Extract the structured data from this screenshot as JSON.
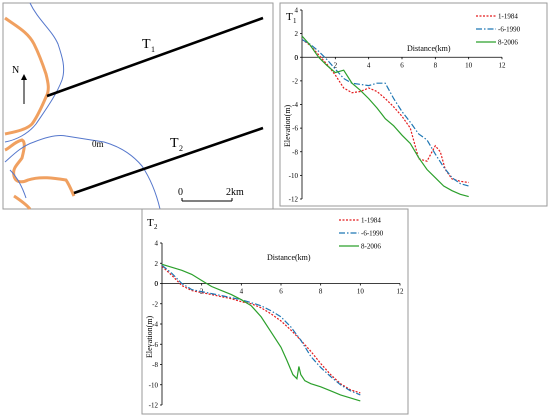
{
  "map": {
    "transect1_label": "T",
    "transect1_sub": "1",
    "transect2_label": "T",
    "transect2_sub": "2",
    "north_label": "N",
    "contour_label": "0m",
    "scale_start": "0",
    "scale_end": "2km",
    "colors": {
      "shore": "#f0a060",
      "contour": "#5577cc",
      "transect": "#000000"
    }
  },
  "chart_data": [
    {
      "type": "line",
      "panel_label": "T",
      "panel_sub": "1",
      "xlabel": "Distance(km)",
      "ylabel": "Elevation(m)",
      "xlim": [
        0,
        12
      ],
      "ylim": [
        -12,
        4
      ],
      "x_ticks": [
        2,
        4,
        6,
        8,
        10,
        12
      ],
      "y_ticks": [
        4,
        2,
        0,
        -2,
        -4,
        -6,
        -8,
        -10,
        -12
      ],
      "series": [
        {
          "name": "1-1984",
          "color": "#e41a1c",
          "dash": "2,1.5",
          "x": [
            0,
            0.5,
            1.0,
            1.5,
            2.0,
            2.5,
            3.0,
            3.5,
            4.0,
            4.5,
            5.0,
            5.5,
            6.0,
            6.5,
            7.0,
            7.5,
            7.8,
            8.0,
            8.3,
            8.6,
            9.0,
            9.5,
            10.0
          ],
          "y": [
            1.5,
            1.0,
            0.2,
            -0.6,
            -1.5,
            -2.6,
            -3.0,
            -2.9,
            -2.6,
            -2.9,
            -3.5,
            -4.2,
            -5.0,
            -6.0,
            -8.6,
            -8.8,
            -8.0,
            -7.5,
            -8.0,
            -9.5,
            -10.3,
            -10.5,
            -10.6
          ]
        },
        {
          "name": "-6-1990",
          "color": "#1f77b4",
          "dash": "6,2,1.5,2",
          "x": [
            0,
            0.5,
            1.0,
            1.5,
            2.0,
            2.5,
            3.0,
            3.5,
            4.0,
            4.5,
            5.0,
            5.5,
            6.0,
            6.5,
            7.0,
            7.5,
            8.0,
            8.5,
            9.0,
            9.5,
            10.0
          ],
          "y": [
            1.5,
            1.1,
            0.5,
            -0.2,
            -1.0,
            -1.8,
            -2.2,
            -2.3,
            -2.4,
            -2.2,
            -2.2,
            -3.5,
            -4.6,
            -5.5,
            -6.5,
            -7.0,
            -8.2,
            -9.3,
            -10.2,
            -10.7,
            -10.9
          ]
        },
        {
          "name": "8-2006",
          "color": "#2ca02c",
          "dash": "",
          "x": [
            0,
            0.5,
            1.0,
            1.5,
            2.0,
            2.5,
            3.0,
            3.5,
            4.0,
            4.5,
            5.0,
            5.5,
            6.0,
            6.5,
            7.0,
            7.5,
            8.0,
            8.5,
            9.0,
            9.5,
            10.0
          ],
          "y": [
            1.8,
            1.0,
            0.0,
            -0.7,
            -1.3,
            -1.1,
            -2.2,
            -2.8,
            -3.5,
            -4.3,
            -5.2,
            -5.8,
            -6.6,
            -7.3,
            -8.5,
            -9.5,
            -10.2,
            -10.9,
            -11.3,
            -11.6,
            -11.8
          ]
        }
      ]
    },
    {
      "type": "line",
      "panel_label": "T",
      "panel_sub": "2",
      "xlabel": "Distance(km)",
      "ylabel": "Elevation(m)",
      "xlim": [
        0,
        12
      ],
      "ylim": [
        -12,
        4
      ],
      "x_ticks": [
        2,
        4,
        6,
        8,
        10,
        12
      ],
      "y_ticks": [
        4,
        2,
        0,
        -2,
        -4,
        -6,
        -8,
        -10,
        -12
      ],
      "series": [
        {
          "name": "1-1984",
          "color": "#e41a1c",
          "dash": "2,1.5",
          "x": [
            0,
            0.5,
            1.0,
            1.5,
            2.0,
            2.5,
            3.0,
            3.5,
            4.0,
            4.5,
            5.0,
            5.5,
            6.0,
            6.5,
            7.0,
            7.5,
            8.0,
            8.5,
            9.0,
            9.5,
            10.0
          ],
          "y": [
            1.7,
            0.8,
            -0.2,
            -0.7,
            -0.9,
            -1.1,
            -1.3,
            -1.5,
            -1.8,
            -2.0,
            -2.4,
            -3.0,
            -3.7,
            -4.6,
            -5.6,
            -6.7,
            -7.9,
            -9.0,
            -9.9,
            -10.5,
            -10.8
          ]
        },
        {
          "name": "-6-1990",
          "color": "#1f77b4",
          "dash": "6,2,1.5,2",
          "x": [
            0,
            0.5,
            1.0,
            1.5,
            2.0,
            2.5,
            3.0,
            3.5,
            4.0,
            4.5,
            5.0,
            5.5,
            6.0,
            6.5,
            7.0,
            7.5,
            8.0,
            8.5,
            9.0,
            9.5,
            10.0
          ],
          "y": [
            1.8,
            1.0,
            0.0,
            -0.6,
            -0.8,
            -1.0,
            -1.2,
            -1.4,
            -1.6,
            -1.9,
            -2.2,
            -2.7,
            -3.3,
            -4.3,
            -5.6,
            -7.2,
            -8.3,
            -9.2,
            -10.0,
            -10.6,
            -11.0
          ]
        },
        {
          "name": "8-2006",
          "color": "#2ca02c",
          "dash": "",
          "x": [
            0,
            0.5,
            1.0,
            1.5,
            2.0,
            2.5,
            3.0,
            3.5,
            4.0,
            4.5,
            5.0,
            5.5,
            6.0,
            6.3,
            6.6,
            6.8,
            6.9,
            7.0,
            7.2,
            7.5,
            8.0,
            8.5,
            9.0,
            9.5,
            10.0
          ],
          "y": [
            1.9,
            1.6,
            1.3,
            0.9,
            0.3,
            -0.3,
            -0.7,
            -1.1,
            -1.6,
            -2.2,
            -3.3,
            -4.8,
            -6.3,
            -7.6,
            -9.0,
            -9.4,
            -8.2,
            -9.0,
            -9.6,
            -9.9,
            -10.2,
            -10.6,
            -11.0,
            -11.3,
            -11.6
          ]
        }
      ]
    }
  ]
}
